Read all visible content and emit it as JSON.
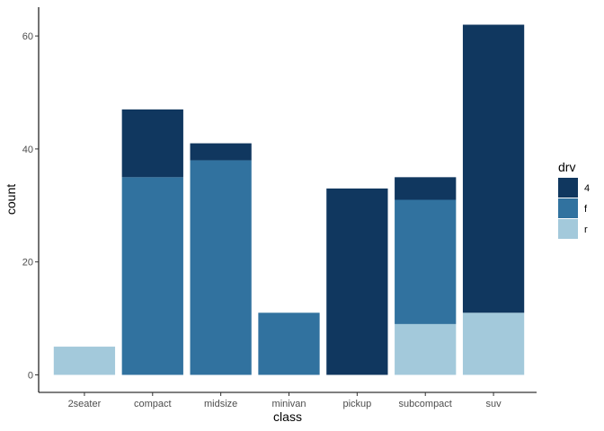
{
  "chart_data": {
    "type": "bar",
    "stacked": true,
    "categories": [
      "2seater",
      "compact",
      "midsize",
      "minivan",
      "pickup",
      "subcompact",
      "suv"
    ],
    "series": [
      {
        "name": "4",
        "color": "#10375f",
        "values": [
          0,
          12,
          3,
          0,
          33,
          4,
          51
        ]
      },
      {
        "name": "f",
        "color": "#31729f",
        "values": [
          0,
          35,
          38,
          11,
          0,
          22,
          0
        ]
      },
      {
        "name": "r",
        "color": "#a3c9db",
        "values": [
          5,
          0,
          0,
          0,
          0,
          9,
          11
        ]
      }
    ],
    "xlabel": "class",
    "ylabel": "count",
    "yticks": [
      0,
      20,
      40,
      60
    ],
    "ylim": [
      -3.1,
      65.1
    ],
    "legend": {
      "title": "drv",
      "position": "right"
    },
    "grid": false
  }
}
